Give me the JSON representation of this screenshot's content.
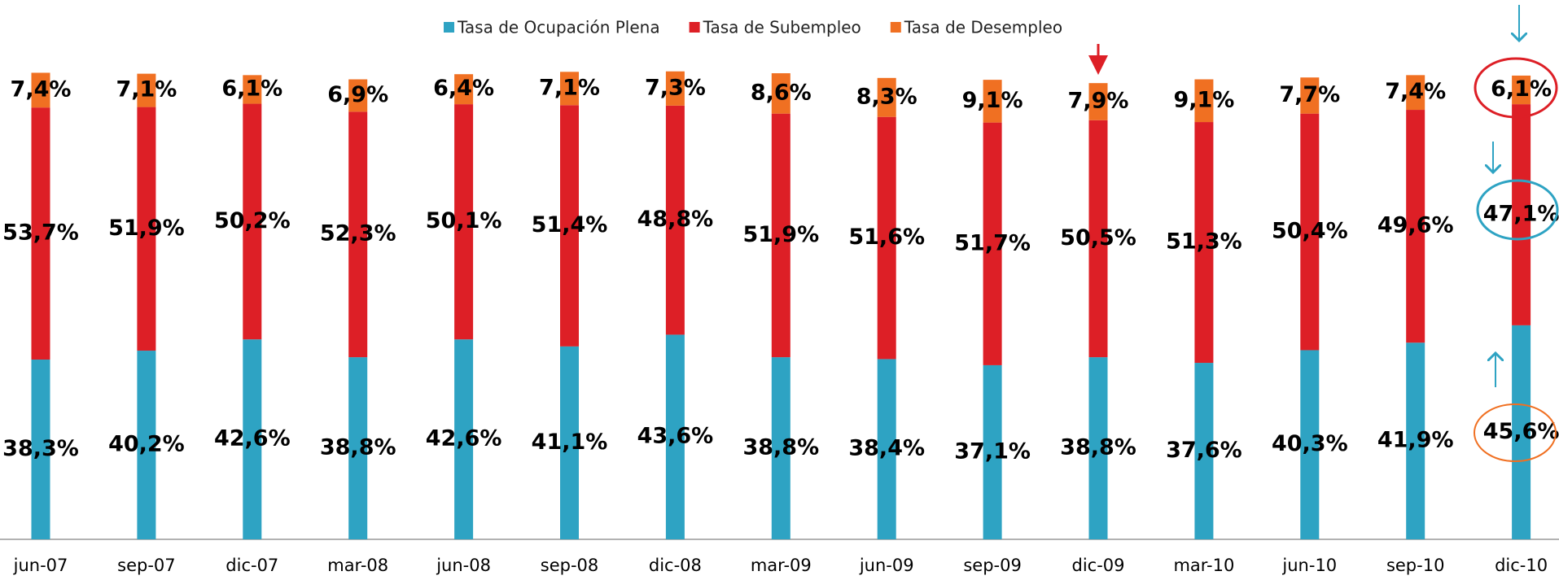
{
  "chart_data": {
    "type": "stacked_bar",
    "categories": [
      "jun-07",
      "sep-07",
      "dic-07",
      "mar-08",
      "jun-08",
      "sep-08",
      "dic-08",
      "mar-09",
      "jun-09",
      "sep-09",
      "dic-09",
      "mar-10",
      "jun-10",
      "sep-10",
      "dic-10"
    ],
    "series": [
      {
        "name": "Tasa de Ocupación Plena",
        "color": "#2ea3c3",
        "values": [
          38.3,
          40.2,
          42.6,
          38.8,
          42.6,
          41.1,
          43.6,
          38.8,
          38.4,
          37.1,
          38.8,
          37.6,
          40.3,
          41.9,
          45.6
        ],
        "value_labels": [
          "38,3%",
          "40,2%",
          "42,6%",
          "38,8%",
          "42,6%",
          "41,1%",
          "43,6%",
          "38,8%",
          "38,4%",
          "37,1%",
          "38,8%",
          "37,6%",
          "40,3%",
          "41,9%",
          "45,6%"
        ]
      },
      {
        "name": "Tasa de Subempleo",
        "color": "#dd1f26",
        "values": [
          53.7,
          51.9,
          50.2,
          52.3,
          50.1,
          51.4,
          48.8,
          51.9,
          51.6,
          51.7,
          50.5,
          51.3,
          50.4,
          49.6,
          47.1
        ],
        "value_labels": [
          "53,7%",
          "51,9%",
          "50,2%",
          "52,3%",
          "50,1%",
          "51,4%",
          "48,8%",
          "51,9%",
          "51,6%",
          "51,7%",
          "50,5%",
          "51,3%",
          "50,4%",
          "49,6%",
          "47,1%"
        ]
      },
      {
        "name": "Tasa de Desempleo",
        "color": "#f07022",
        "values": [
          7.4,
          7.1,
          6.1,
          6.9,
          6.4,
          7.1,
          7.3,
          8.6,
          8.3,
          9.1,
          7.9,
          9.1,
          7.7,
          7.4,
          6.1
        ],
        "value_labels": [
          "7,4%",
          "7,1%",
          "6,1%",
          "6,9%",
          "6,4%",
          "7,1%",
          "7,3%",
          "8,6%",
          "8,3%",
          "9,1%",
          "7,9%",
          "9,1%",
          "7,7%",
          "7,4%",
          "6,1%"
        ]
      }
    ],
    "legend": "top"
  }
}
